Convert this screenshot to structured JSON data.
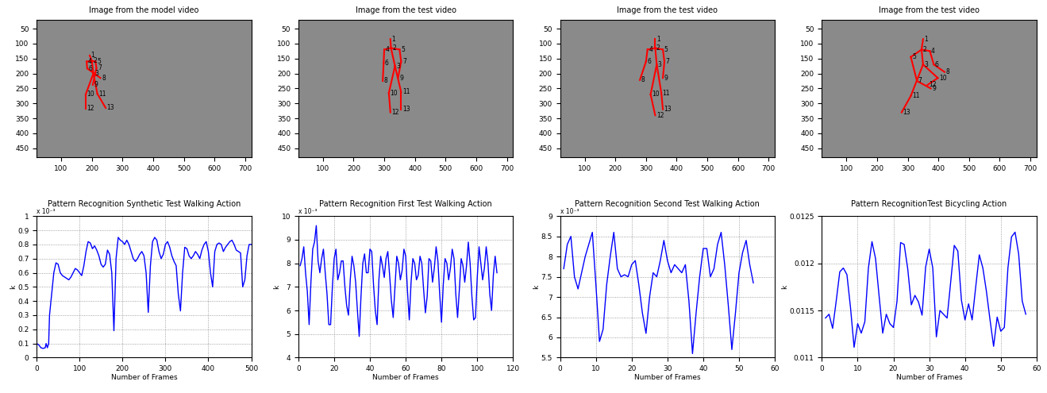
{
  "chart_data": [
    {
      "type": "image",
      "title": "Image from the model video",
      "xlim": [
        20,
        720
      ],
      "ylim": [
        480,
        20
      ],
      "xticks": [
        100,
        200,
        300,
        400,
        500,
        600,
        700
      ],
      "yticks": [
        50,
        100,
        150,
        200,
        250,
        300,
        350,
        400,
        450
      ],
      "color": "#ff0000",
      "joints": [
        {
          "id": 1,
          "x": 193,
          "y": 140
        },
        {
          "id": 2,
          "x": 200,
          "y": 158
        },
        {
          "id": 3,
          "x": 205,
          "y": 200
        },
        {
          "id": 4,
          "x": 183,
          "y": 160
        },
        {
          "id": 5,
          "x": 212,
          "y": 160
        },
        {
          "id": 6,
          "x": 185,
          "y": 183
        },
        {
          "id": 7,
          "x": 215,
          "y": 182
        },
        {
          "id": 8,
          "x": 228,
          "y": 215
        },
        {
          "id": 9,
          "x": 203,
          "y": 238
        },
        {
          "id": 10,
          "x": 180,
          "y": 270
        },
        {
          "id": 11,
          "x": 218,
          "y": 268
        },
        {
          "id": 12,
          "x": 180,
          "y": 318
        },
        {
          "id": 13,
          "x": 245,
          "y": 315
        }
      ],
      "edges": [
        [
          1,
          2
        ],
        [
          2,
          4
        ],
        [
          4,
          6
        ],
        [
          6,
          8
        ],
        [
          2,
          5
        ],
        [
          5,
          7
        ],
        [
          7,
          9
        ],
        [
          2,
          3
        ],
        [
          3,
          10
        ],
        [
          10,
          12
        ],
        [
          3,
          11
        ],
        [
          11,
          13
        ]
      ]
    },
    {
      "type": "image",
      "title": "Image from the test video",
      "xlim": [
        20,
        720
      ],
      "ylim": [
        480,
        20
      ],
      "xticks": [
        100,
        200,
        300,
        400,
        500,
        600,
        700
      ],
      "yticks": [
        50,
        100,
        150,
        200,
        250,
        300,
        350,
        400,
        450
      ],
      "color": "#ff0000",
      "joints": [
        {
          "id": 1,
          "x": 320,
          "y": 85
        },
        {
          "id": 2,
          "x": 322,
          "y": 115
        },
        {
          "id": 3,
          "x": 335,
          "y": 175
        },
        {
          "id": 4,
          "x": 300,
          "y": 120
        },
        {
          "id": 5,
          "x": 350,
          "y": 120
        },
        {
          "id": 6,
          "x": 298,
          "y": 165
        },
        {
          "id": 7,
          "x": 355,
          "y": 160
        },
        {
          "id": 8,
          "x": 295,
          "y": 225
        },
        {
          "id": 9,
          "x": 345,
          "y": 215
        },
        {
          "id": 10,
          "x": 315,
          "y": 265
        },
        {
          "id": 11,
          "x": 355,
          "y": 262
        },
        {
          "id": 12,
          "x": 320,
          "y": 330
        },
        {
          "id": 13,
          "x": 355,
          "y": 320
        }
      ],
      "edges": [
        [
          1,
          2
        ],
        [
          2,
          4
        ],
        [
          4,
          6
        ],
        [
          6,
          8
        ],
        [
          2,
          5
        ],
        [
          5,
          7
        ],
        [
          7,
          9
        ],
        [
          2,
          3
        ],
        [
          3,
          10
        ],
        [
          10,
          12
        ],
        [
          3,
          11
        ],
        [
          11,
          13
        ]
      ]
    },
    {
      "type": "image",
      "title": "Image from the test video",
      "xlim": [
        20,
        720
      ],
      "ylim": [
        480,
        20
      ],
      "xticks": [
        100,
        200,
        300,
        400,
        500,
        600,
        700
      ],
      "yticks": [
        50,
        100,
        150,
        200,
        250,
        300,
        350,
        400,
        450
      ],
      "color": "#ff0000",
      "joints": [
        {
          "id": 1,
          "x": 330,
          "y": 85
        },
        {
          "id": 2,
          "x": 330,
          "y": 115
        },
        {
          "id": 3,
          "x": 335,
          "y": 170
        },
        {
          "id": 4,
          "x": 305,
          "y": 120
        },
        {
          "id": 5,
          "x": 355,
          "y": 120
        },
        {
          "id": 6,
          "x": 300,
          "y": 160
        },
        {
          "id": 7,
          "x": 360,
          "y": 160
        },
        {
          "id": 8,
          "x": 280,
          "y": 222
        },
        {
          "id": 9,
          "x": 355,
          "y": 215
        },
        {
          "id": 10,
          "x": 315,
          "y": 270
        },
        {
          "id": 11,
          "x": 350,
          "y": 265
        },
        {
          "id": 12,
          "x": 330,
          "y": 340
        },
        {
          "id": 13,
          "x": 355,
          "y": 320
        }
      ],
      "edges": [
        [
          1,
          2
        ],
        [
          2,
          4
        ],
        [
          4,
          6
        ],
        [
          6,
          8
        ],
        [
          2,
          5
        ],
        [
          5,
          7
        ],
        [
          7,
          9
        ],
        [
          2,
          3
        ],
        [
          3,
          10
        ],
        [
          10,
          12
        ],
        [
          3,
          11
        ],
        [
          11,
          13
        ]
      ]
    },
    {
      "type": "image",
      "title": "Image from the test video",
      "xlim": [
        20,
        720
      ],
      "ylim": [
        480,
        20
      ],
      "xticks": [
        100,
        200,
        300,
        400,
        500,
        600,
        700
      ],
      "yticks": [
        50,
        100,
        150,
        200,
        250,
        300,
        350,
        400,
        450
      ],
      "color": "#ff0000",
      "joints": [
        {
          "id": 1,
          "x": 350,
          "y": 85
        },
        {
          "id": 2,
          "x": 345,
          "y": 120
        },
        {
          "id": 3,
          "x": 350,
          "y": 170
        },
        {
          "id": 4,
          "x": 372,
          "y": 125
        },
        {
          "id": 5,
          "x": 310,
          "y": 145
        },
        {
          "id": 6,
          "x": 385,
          "y": 170
        },
        {
          "id": 7,
          "x": 330,
          "y": 225
        },
        {
          "id": 8,
          "x": 420,
          "y": 195
        },
        {
          "id": 9,
          "x": 375,
          "y": 250
        },
        {
          "id": 10,
          "x": 398,
          "y": 215
        },
        {
          "id": 11,
          "x": 310,
          "y": 275
        },
        {
          "id": 12,
          "x": 365,
          "y": 238
        },
        {
          "id": 13,
          "x": 280,
          "y": 330
        }
      ],
      "edges": [
        [
          1,
          2
        ],
        [
          2,
          4
        ],
        [
          4,
          6
        ],
        [
          6,
          8
        ],
        [
          2,
          5
        ],
        [
          5,
          7
        ],
        [
          7,
          9
        ],
        [
          2,
          3
        ],
        [
          3,
          10
        ],
        [
          10,
          12
        ],
        [
          3,
          11
        ],
        [
          11,
          13
        ]
      ]
    },
    {
      "type": "line",
      "title": "Pattern Recognition Synthetic Test Walking Action",
      "x_label": "Number of Frames",
      "y_label": "k",
      "color": "#0000ff",
      "grid": true,
      "annotations": [
        "x 10⁻³"
      ],
      "xlim": [
        0,
        500
      ],
      "ylim": [
        0,
        1
      ],
      "xticks": [
        0,
        100,
        200,
        300,
        400,
        500
      ],
      "yticks": [
        0,
        0.1,
        0.2,
        0.3,
        0.4,
        0.5,
        0.6,
        0.7,
        0.8,
        0.9,
        1
      ],
      "x": [
        0,
        5,
        10,
        15,
        20,
        22,
        25,
        28,
        30,
        35,
        40,
        45,
        50,
        55,
        60,
        70,
        75,
        80,
        85,
        90,
        95,
        100,
        105,
        110,
        115,
        120,
        125,
        130,
        135,
        140,
        145,
        150,
        155,
        160,
        165,
        170,
        175,
        180,
        185,
        190,
        195,
        200,
        205,
        210,
        215,
        220,
        225,
        230,
        235,
        240,
        245,
        250,
        255,
        260,
        265,
        270,
        275,
        280,
        285,
        290,
        295,
        300,
        305,
        310,
        315,
        320,
        325,
        330,
        335,
        340,
        345,
        350,
        355,
        360,
        365,
        370,
        375,
        380,
        385,
        390,
        395,
        400,
        405,
        410,
        415,
        420,
        425,
        430,
        435,
        440,
        445,
        450,
        455,
        460,
        465,
        470,
        475,
        480,
        485,
        490,
        495,
        500
      ],
      "values": [
        0.1,
        0.09,
        0.07,
        0.065,
        0.07,
        0.1,
        0.07,
        0.1,
        0.3,
        0.45,
        0.6,
        0.67,
        0.66,
        0.6,
        0.58,
        0.56,
        0.55,
        0.57,
        0.6,
        0.63,
        0.62,
        0.6,
        0.58,
        0.65,
        0.75,
        0.82,
        0.81,
        0.77,
        0.79,
        0.76,
        0.72,
        0.66,
        0.64,
        0.66,
        0.76,
        0.73,
        0.6,
        0.19,
        0.7,
        0.85,
        0.83,
        0.82,
        0.8,
        0.83,
        0.8,
        0.75,
        0.7,
        0.68,
        0.7,
        0.73,
        0.75,
        0.72,
        0.6,
        0.32,
        0.65,
        0.82,
        0.85,
        0.83,
        0.75,
        0.7,
        0.73,
        0.8,
        0.82,
        0.78,
        0.72,
        0.68,
        0.65,
        0.45,
        0.33,
        0.6,
        0.78,
        0.77,
        0.72,
        0.7,
        0.72,
        0.75,
        0.73,
        0.7,
        0.76,
        0.8,
        0.82,
        0.75,
        0.6,
        0.5,
        0.75,
        0.8,
        0.81,
        0.8,
        0.75,
        0.78,
        0.8,
        0.82,
        0.83,
        0.8,
        0.76,
        0.75,
        0.74,
        0.5,
        0.55,
        0.72,
        0.8,
        0.8
      ]
    },
    {
      "type": "line",
      "title": "Pattern Recognition First Test Walking Action",
      "x_label": "Number of Frames",
      "y_label": "k",
      "color": "#0000ff",
      "grid": true,
      "annotations": [
        "x 10⁻³"
      ],
      "xlim": [
        0,
        120
      ],
      "ylim": [
        4,
        10
      ],
      "xticks": [
        0,
        20,
        40,
        60,
        80,
        100,
        120
      ],
      "yticks": [
        4,
        5,
        6,
        7,
        8,
        9,
        10
      ],
      "x": [
        1,
        2,
        3,
        4,
        5,
        6,
        7,
        8,
        9,
        10,
        11,
        12,
        13,
        14,
        15,
        16,
        17,
        18,
        19,
        20,
        21,
        22,
        23,
        24,
        25,
        26,
        27,
        28,
        29,
        30,
        31,
        32,
        33,
        34,
        35,
        36,
        37,
        38,
        39,
        40,
        41,
        42,
        43,
        44,
        45,
        46,
        47,
        48,
        49,
        50,
        51,
        52,
        53,
        54,
        55,
        56,
        57,
        58,
        59,
        60,
        61,
        62,
        63,
        64,
        65,
        66,
        67,
        68,
        69,
        70,
        71,
        72,
        73,
        74,
        75,
        76,
        77,
        78,
        79,
        80,
        81,
        82,
        83,
        84,
        85,
        86,
        87,
        88,
        89,
        90,
        91,
        92,
        93,
        94,
        95,
        96,
        97,
        98,
        99,
        100,
        101,
        102,
        103,
        104,
        105,
        106,
        107,
        108,
        109,
        110,
        111
      ],
      "values": [
        7.9,
        8.2,
        8.7,
        7.6,
        6.8,
        5.4,
        7.2,
        8.6,
        8.9,
        9.6,
        8.1,
        7.6,
        8.2,
        8.6,
        7.6,
        6.7,
        5.4,
        5.4,
        7.0,
        8.2,
        8.6,
        7.3,
        7.6,
        8.1,
        8.1,
        7.0,
        6.2,
        5.8,
        7.3,
        8.3,
        7.9,
        7.2,
        6.0,
        4.9,
        6.6,
        8.0,
        8.4,
        7.6,
        7.6,
        8.6,
        8.5,
        7.1,
        6.0,
        5.4,
        7.3,
        8.3,
        7.9,
        7.4,
        8.2,
        8.5,
        7.5,
        6.4,
        5.7,
        7.0,
        8.3,
        8.0,
        7.3,
        7.7,
        8.6,
        8.3,
        6.8,
        5.6,
        7.2,
        8.2,
        8.0,
        7.3,
        7.5,
        8.3,
        8.0,
        6.9,
        5.9,
        6.6,
        8.2,
        8.1,
        7.2,
        7.8,
        8.7,
        8.1,
        6.7,
        5.5,
        7.1,
        8.2,
        8.0,
        7.3,
        7.8,
        8.6,
        8.2,
        6.7,
        5.7,
        6.9,
        8.2,
        7.9,
        7.2,
        7.9,
        8.9,
        8.0,
        6.6,
        5.6,
        5.7,
        7.4,
        8.7,
        8.0,
        7.3,
        7.8,
        8.7,
        8.0,
        6.7,
        6.0,
        7.5,
        8.3,
        7.6
      ]
    },
    {
      "type": "line",
      "title": "Pattern Recognition Second Test Walking Action",
      "x_label": "Number of Frames",
      "y_label": "k",
      "color": "#0000ff",
      "grid": true,
      "annotations": [
        "x 10⁻³"
      ],
      "xlim": [
        0,
        60
      ],
      "ylim": [
        5.5,
        9
      ],
      "xticks": [
        0,
        10,
        20,
        30,
        40,
        50,
        60
      ],
      "yticks": [
        5.5,
        6,
        6.5,
        7,
        7.5,
        8,
        8.5,
        9
      ],
      "x": [
        1,
        2,
        3,
        4,
        5,
        6,
        7,
        8,
        9,
        10,
        11,
        12,
        13,
        14,
        15,
        16,
        17,
        18,
        19,
        20,
        21,
        22,
        23,
        24,
        25,
        26,
        27,
        28,
        29,
        30,
        31,
        32,
        33,
        34,
        35,
        36,
        37,
        38,
        39,
        40,
        41,
        42,
        43,
        44,
        45,
        46,
        47,
        48,
        49,
        50,
        51,
        52,
        53,
        54
      ],
      "values": [
        7.7,
        8.3,
        8.5,
        7.5,
        7.2,
        7.6,
        8.0,
        8.3,
        8.6,
        7.3,
        5.9,
        6.2,
        7.3,
        8.0,
        8.6,
        7.7,
        7.5,
        7.55,
        7.5,
        7.8,
        7.9,
        7.3,
        6.6,
        6.1,
        7.0,
        7.6,
        7.5,
        7.9,
        8.4,
        7.9,
        7.6,
        7.8,
        7.7,
        7.6,
        7.8,
        6.9,
        5.6,
        6.6,
        7.5,
        8.2,
        8.2,
        7.5,
        7.7,
        8.3,
        8.6,
        7.8,
        6.8,
        5.7,
        6.6,
        7.6,
        8.1,
        8.4,
        7.8,
        7.35
      ]
    },
    {
      "type": "line",
      "title": "Pattern RecognitionTest Bicycling Action",
      "x_label": "Number of Frames",
      "y_label": "k",
      "color": "#0000ff",
      "grid": true,
      "xlim": [
        0,
        60
      ],
      "ylim": [
        0.011,
        0.0125
      ],
      "xticks": [
        0,
        10,
        20,
        30,
        40,
        50,
        60
      ],
      "yticks": [
        0.011,
        0.0115,
        0.012,
        0.0125
      ],
      "x": [
        1,
        2,
        3,
        4,
        5,
        6,
        7,
        8,
        9,
        10,
        11,
        12,
        13,
        14,
        15,
        16,
        17,
        18,
        19,
        20,
        21,
        22,
        23,
        24,
        25,
        26,
        27,
        28,
        29,
        30,
        31,
        32,
        33,
        34,
        35,
        36,
        37,
        38,
        39,
        40,
        41,
        42,
        43,
        44,
        45,
        46,
        47,
        48,
        49,
        50,
        51,
        52,
        53,
        54,
        55,
        56,
        57
      ],
      "values": [
        0.01142,
        0.01146,
        0.01131,
        0.0116,
        0.01191,
        0.01195,
        0.01188,
        0.01153,
        0.01111,
        0.01136,
        0.01126,
        0.01138,
        0.01195,
        0.01223,
        0.01205,
        0.01165,
        0.01126,
        0.01146,
        0.01136,
        0.01132,
        0.0116,
        0.01222,
        0.0122,
        0.01194,
        0.01156,
        0.01166,
        0.01159,
        0.01145,
        0.01196,
        0.01215,
        0.01195,
        0.01122,
        0.0115,
        0.01146,
        0.01142,
        0.0118,
        0.01219,
        0.01213,
        0.01161,
        0.0114,
        0.01157,
        0.0114,
        0.01175,
        0.01209,
        0.01195,
        0.0117,
        0.0114,
        0.01112,
        0.01143,
        0.01128,
        0.01132,
        0.01195,
        0.01228,
        0.01233,
        0.0121,
        0.0116,
        0.01146
      ]
    }
  ]
}
